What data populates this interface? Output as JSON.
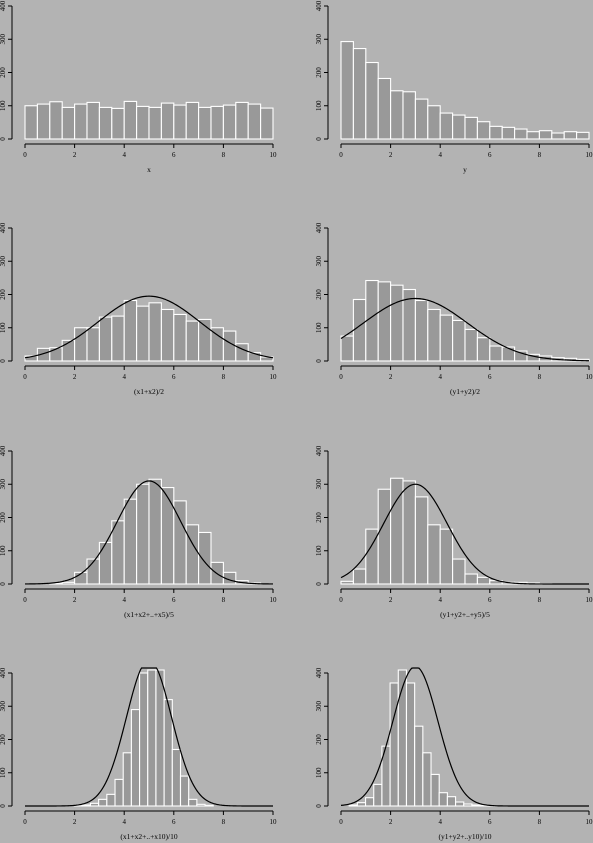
{
  "style": {
    "background": "#b3b3b3",
    "bar_fill": "#999999",
    "bar_stroke": "#ffffff",
    "curve": "#000000"
  },
  "chart_data": [
    {
      "type": "bar",
      "xlabel": "x",
      "ylim": [
        0,
        400
      ],
      "xlim": [
        0,
        10
      ],
      "yticks": [
        "0",
        "100",
        "200",
        "300",
        "400"
      ],
      "xticks": [
        "0",
        "2",
        "4",
        "6",
        "8",
        "10"
      ],
      "bin_width": 0.5,
      "values": [
        100,
        105,
        112,
        95,
        105,
        110,
        95,
        92,
        113,
        98,
        95,
        108,
        102,
        110,
        95,
        98,
        102,
        110,
        105,
        93
      ],
      "curve": null
    },
    {
      "type": "bar",
      "xlabel": "y",
      "ylim": [
        0,
        400
      ],
      "xlim": [
        0,
        10
      ],
      "yticks": [
        "0",
        "100",
        "200",
        "300",
        "400"
      ],
      "xticks": [
        "0",
        "2",
        "4",
        "6",
        "8",
        "10"
      ],
      "bin_width": 0.5,
      "values": [
        293,
        272,
        230,
        182,
        145,
        142,
        120,
        100,
        78,
        72,
        65,
        52,
        38,
        35,
        30,
        22,
        25,
        18,
        22,
        20
      ],
      "curve": null
    },
    {
      "type": "bar",
      "xlabel": "(x1+x2)/2",
      "ylim": [
        0,
        400
      ],
      "xlim": [
        0,
        10
      ],
      "yticks": [
        "0",
        "100",
        "200",
        "300",
        "400"
      ],
      "xticks": [
        "0",
        "2",
        "4",
        "6",
        "8",
        "10"
      ],
      "bin_width": 0.5,
      "values": [
        15,
        38,
        40,
        62,
        100,
        100,
        132,
        135,
        182,
        165,
        175,
        155,
        140,
        120,
        125,
        100,
        90,
        52,
        25,
        12
      ],
      "curve": {
        "mean": 5,
        "sd": 2.04,
        "peak": 195
      }
    },
    {
      "type": "bar",
      "xlabel": "(y1+y2)/2",
      "ylim": [
        0,
        400
      ],
      "xlim": [
        0,
        10
      ],
      "yticks": [
        "0",
        "100",
        "200",
        "300",
        "400"
      ],
      "xticks": [
        "0",
        "2",
        "4",
        "6",
        "8",
        "10"
      ],
      "bin_width": 0.5,
      "values": [
        75,
        185,
        242,
        238,
        228,
        215,
        182,
        155,
        138,
        122,
        95,
        70,
        45,
        42,
        30,
        20,
        15,
        10,
        8,
        5
      ],
      "curve": {
        "mean": 3,
        "sd": 2.1,
        "peak": 188
      }
    },
    {
      "type": "bar",
      "xlabel": "(x1+x2+..+x5)/5",
      "ylim": [
        0,
        400
      ],
      "xlim": [
        0,
        10
      ],
      "yticks": [
        "0",
        "100",
        "200",
        "300",
        "400"
      ],
      "xticks": [
        "0",
        "2",
        "4",
        "6",
        "8",
        "10"
      ],
      "bin_width": 0.5,
      "values": [
        0,
        0,
        2,
        5,
        35,
        75,
        125,
        190,
        255,
        300,
        315,
        290,
        250,
        178,
        155,
        65,
        35,
        10,
        3,
        0
      ],
      "curve": {
        "mean": 5,
        "sd": 1.28,
        "peak": 310
      }
    },
    {
      "type": "bar",
      "xlabel": "(y1+y2+..+y5)/5",
      "ylim": [
        0,
        400
      ],
      "xlim": [
        0,
        10
      ],
      "yticks": [
        "0",
        "100",
        "200",
        "300",
        "400"
      ],
      "xticks": [
        "0",
        "2",
        "4",
        "6",
        "8",
        "10"
      ],
      "bin_width": 0.5,
      "values": [
        8,
        45,
        165,
        285,
        318,
        310,
        262,
        178,
        165,
        75,
        30,
        20,
        10,
        5,
        5,
        3,
        1,
        0,
        0,
        0
      ],
      "curve": {
        "mean": 3,
        "sd": 1.28,
        "peak": 300
      }
    },
    {
      "type": "bar",
      "xlabel": "(x1+x2+..+x10)/10",
      "ylim": [
        0,
        400
      ],
      "xlim": [
        0,
        10
      ],
      "yticks": [
        "0",
        "100",
        "200",
        "300",
        "400"
      ],
      "xticks": [
        "0",
        "2",
        "4",
        "6",
        "8",
        "10"
      ],
      "bin_width": 0.33,
      "values": [
        0,
        0,
        0,
        0,
        0,
        0,
        1,
        3,
        8,
        20,
        35,
        80,
        160,
        290,
        400,
        440,
        440,
        320,
        170,
        90,
        20,
        5,
        2,
        0,
        0,
        0,
        0,
        0,
        0,
        0
      ],
      "curve": {
        "mean": 5,
        "sd": 0.91,
        "peak": 440
      }
    },
    {
      "type": "bar",
      "xlabel": "(y1+y2+..y10)/10",
      "ylim": [
        0,
        400
      ],
      "xlim": [
        0,
        10
      ],
      "yticks": [
        "0",
        "100",
        "200",
        "300",
        "400"
      ],
      "xticks": [
        "0",
        "2",
        "4",
        "6",
        "8",
        "10"
      ],
      "bin_width": 0.33,
      "values": [
        0,
        3,
        10,
        25,
        65,
        180,
        370,
        440,
        370,
        240,
        160,
        95,
        40,
        28,
        12,
        6,
        3,
        2,
        1,
        0,
        0,
        0,
        0,
        0,
        0,
        0,
        0,
        0,
        0,
        0
      ],
      "curve": {
        "mean": 3,
        "sd": 0.91,
        "peak": 420
      }
    }
  ]
}
